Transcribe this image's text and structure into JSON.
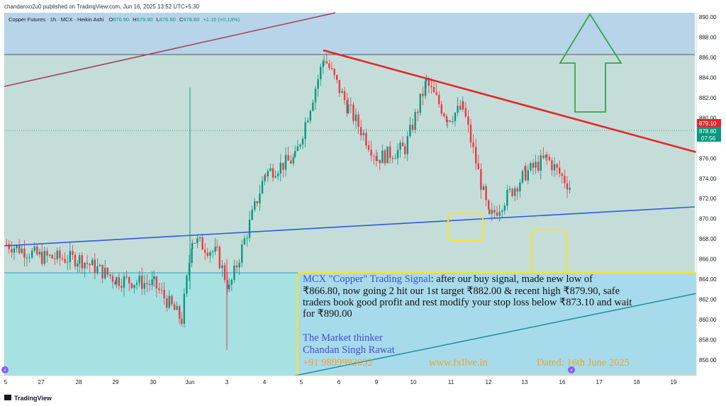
{
  "header": {
    "published": "chandanxo2u0 published on TradingView.com, Jun 16, 2025 13:52 UTC+5:30"
  },
  "legend": {
    "symbol": "Copper Futures · 1h · MCX · Heikin Ashi",
    "o_label": "O",
    "o_value": "876.90",
    "h_label": "H",
    "h_value": "879.90",
    "l_label": "L",
    "l_value": "876.90",
    "c_label": "C",
    "c_value": "878.80",
    "change": "+1.15 (+0.13%)"
  },
  "price_tags": {
    "red": "879.10",
    "teal_price": "878.80",
    "teal_timer": "07:56"
  },
  "annotation": {
    "line1_blue": "MCX \"Copper\" Trading Signal",
    "line1_rest": ": after our buy signal, made new low of",
    "line2": "₹866.80, now going 2 hit our 1st target ₹882.00 & recent high ₹879.90, safe",
    "line3": "traders book good profit and rest modify your stop loss below ₹873.10 and wait",
    "line4": "for ₹890.00",
    "name1": "The Market thinker",
    "name2": "Chandan Singh Rawat",
    "phone": "+91 9899993052",
    "website": "www.fxlive.in",
    "dated": "Dated: 16th June 2025"
  },
  "footer": {
    "brand": "TradingView"
  },
  "colors": {
    "up": "#089981",
    "down": "#f23645",
    "resistance": "#e5252a",
    "support": "#2f5be0",
    "upper_zone": "#b8d4e9",
    "mid_zone": "#c5ddd8",
    "lower_zone": "#a8e1e1",
    "annotation_border": "#f5e425",
    "arrow": "#2ea84a"
  },
  "chart_data": {
    "type": "candlestick",
    "style": "Heikin Ashi",
    "symbol": "Copper Futures",
    "interval": "1h",
    "exchange": "MCX",
    "ylim": [
      854.5,
      891.5
    ],
    "y_ticks": [
      "890.00",
      "888.00",
      "886.00",
      "884.00",
      "882.00",
      "880.00",
      "878.00",
      "876.00",
      "874.00",
      "872.00",
      "870.00",
      "868.00",
      "866.00",
      "864.00",
      "862.00",
      "860.00",
      "858.00",
      "856.00"
    ],
    "x_ticks": [
      "5",
      "27",
      "28",
      "29",
      "30",
      "Jun",
      "3",
      "4",
      "5",
      "6",
      "9",
      "10",
      "11",
      "12",
      "13",
      "16",
      "17",
      "18",
      "19"
    ],
    "current_price": 878.8,
    "prior_close": 879.1,
    "levels": {
      "upper_zone_bottom": 886.3,
      "lower_zone_top": 864.6
    },
    "ohlc_anchor_closes": [
      {
        "x": "5",
        "close": 867.5
      },
      {
        "x": "27",
        "close": 866.2
      },
      {
        "x": "28",
        "close": 866.0
      },
      {
        "x": "29",
        "close": 864.0
      },
      {
        "x": "30",
        "close": 863.5
      },
      {
        "x": "Jun",
        "close": 860.0
      },
      {
        "x": "Jun",
        "close": 868.0
      },
      {
        "x": "3",
        "close": 866.5
      },
      {
        "x": "3",
        "close": 863.0
      },
      {
        "x": "4",
        "close": 874.5
      },
      {
        "x": "5",
        "close": 876.0
      },
      {
        "x": "5",
        "close": 886.0
      },
      {
        "x": "6",
        "close": 881.0
      },
      {
        "x": "6",
        "close": 876.0
      },
      {
        "x": "9",
        "close": 877.0
      },
      {
        "x": "10",
        "close": 883.5
      },
      {
        "x": "10",
        "close": 880.0
      },
      {
        "x": "11",
        "close": 881.0
      },
      {
        "x": "11",
        "close": 870.0
      },
      {
        "x": "12",
        "close": 874.5
      },
      {
        "x": "13",
        "close": 876.0
      },
      {
        "x": "13",
        "close": 873.0
      },
      {
        "x": "16",
        "close": 869.0
      },
      {
        "x": "16",
        "close": 878.8
      }
    ],
    "annotations": {
      "falling_resistance": {
        "from": {
          "x": "5",
          "y": 886.6
        },
        "to": {
          "x": "19",
          "y": 876.5
        }
      },
      "rising_support": {
        "from": {
          "x": "5",
          "y": 867.5
        },
        "to": {
          "x": "19",
          "y": 871.3
        }
      },
      "upward_target_arrow_tip": 890.0,
      "highlighted_lows": [
        869.5,
        866.8
      ]
    }
  }
}
